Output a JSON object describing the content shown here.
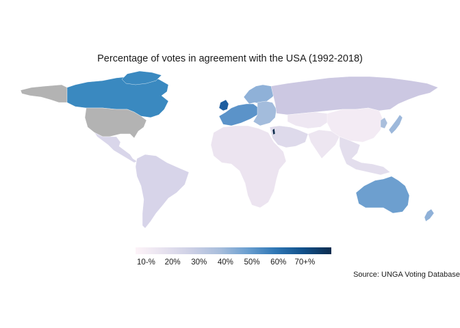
{
  "title": "Percentage of votes in agreement with the USA (1992-2018)",
  "source": "Source: UNGA Voting Database",
  "legend": {
    "ticks": [
      "10-%",
      "20%",
      "30%",
      "40%",
      "50%",
      "60%",
      "70+%"
    ],
    "tick_values": [
      10,
      20,
      30,
      40,
      50,
      60,
      70
    ],
    "range": [
      6,
      80
    ],
    "gradient": [
      "#fdf3f8",
      "#e7e2ef",
      "#cccfe5",
      "#a9bedc",
      "#6b9fd0",
      "#2f77b5",
      "#11508a",
      "#0d2c4e"
    ]
  },
  "colors": {
    "no_data": "#b3b3b3",
    "canada": "#3a89c0",
    "australia": "#6d9fcf",
    "uk": "#1e5ea0",
    "israel": "#0d2c4e",
    "europe": "#8fb1d8",
    "russia": "#ccc8e2",
    "low": "#ece4f0"
  },
  "regions": [
    {
      "name": "United States",
      "value": null,
      "color": "#b3b3b3"
    },
    {
      "name": "Alaska",
      "value": null,
      "color": "#b3b3b3"
    },
    {
      "name": "Canada",
      "value": 52,
      "color": "#3a89c0"
    },
    {
      "name": "Greenland",
      "value": 52,
      "color": "#3a89c0"
    },
    {
      "name": "Mexico & Central America",
      "value": 22,
      "color": "#d9d6ea"
    },
    {
      "name": "South America",
      "value": 22,
      "color": "#d7d4e9"
    },
    {
      "name": "United Kingdom",
      "value": 62,
      "color": "#1e5ea0"
    },
    {
      "name": "Western Europe",
      "value": 45,
      "color": "#5b93c9"
    },
    {
      "name": "Scandinavia",
      "value": 40,
      "color": "#8fb1d8"
    },
    {
      "name": "Eastern Europe",
      "value": 35,
      "color": "#a3bcdc"
    },
    {
      "name": "Russia",
      "value": 28,
      "color": "#ccc8e2"
    },
    {
      "name": "Africa",
      "value": 15,
      "color": "#ece4f0"
    },
    {
      "name": "Middle East",
      "value": 14,
      "color": "#eee7f2"
    },
    {
      "name": "Central Asia",
      "value": 20,
      "color": "#dedaeb"
    },
    {
      "name": "South Asia",
      "value": 14,
      "color": "#ede6f1"
    },
    {
      "name": "China",
      "value": 12,
      "color": "#f3ebf4"
    },
    {
      "name": "Japan",
      "value": 38,
      "color": "#9db8db"
    },
    {
      "name": "Korea",
      "value": 34,
      "color": "#a9bedc"
    },
    {
      "name": "Southeast Asia",
      "value": 18,
      "color": "#e3deed"
    },
    {
      "name": "Australia",
      "value": 48,
      "color": "#6d9fcf"
    },
    {
      "name": "New Zealand",
      "value": 40,
      "color": "#8fb1d8"
    },
    {
      "name": "Israel",
      "value": 85,
      "color": "#0d2c4e"
    }
  ]
}
